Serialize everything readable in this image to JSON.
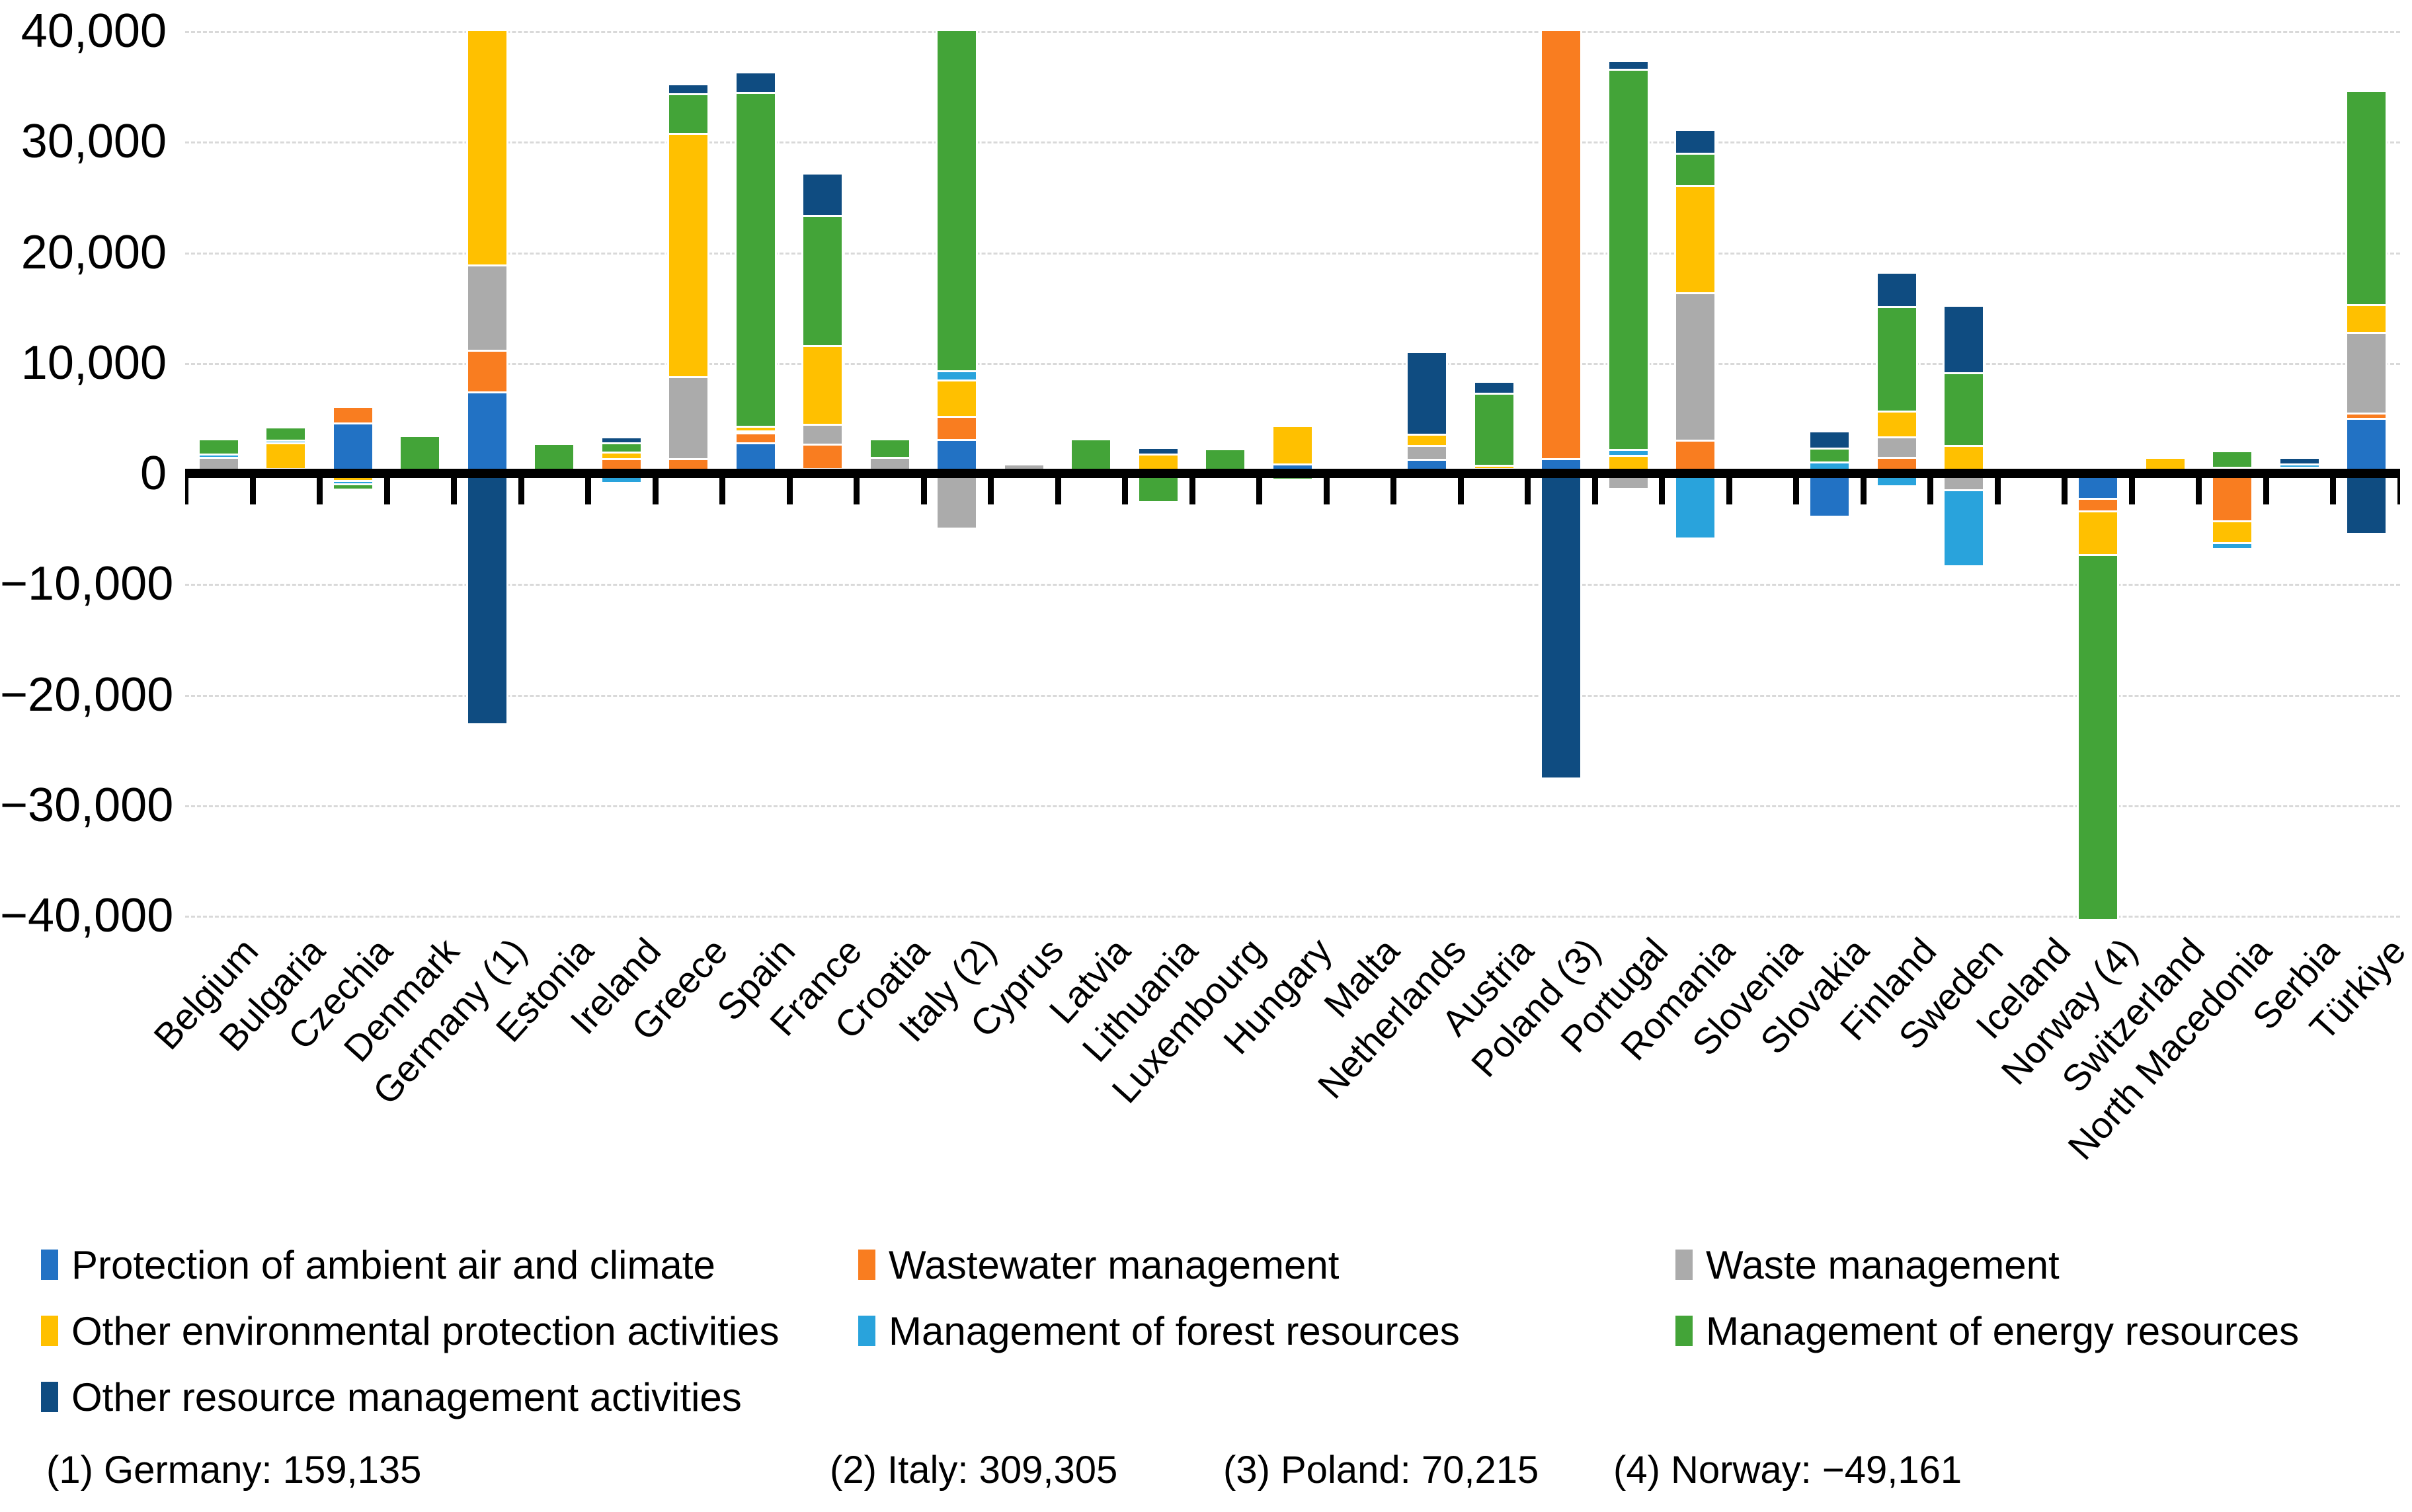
{
  "chart_data": {
    "type": "bar",
    "stacked": true,
    "title": "",
    "xlabel": "",
    "ylabel": "",
    "ylim": [
      -40000,
      40000
    ],
    "y_ticks": [
      "40,000",
      "30,000",
      "20,000",
      "10,000",
      "0",
      "−10,000",
      "−20,000",
      "−30,000",
      "−40,000"
    ],
    "grid": "horizontal-dashed",
    "legend_position": "bottom",
    "categories": [
      "Belgium",
      "Bulgaria",
      "Czechia",
      "Denmark",
      "Germany (1)",
      "Estonia",
      "Ireland",
      "Greece",
      "Spain",
      "France",
      "Croatia",
      "Italy (2)",
      "Cyprus",
      "Latvia",
      "Lithuania",
      "Luxembourg",
      "Hungary",
      "Malta",
      "Netherlands",
      "Austria",
      "Poland (3)",
      "Portugal",
      "Romania",
      "Slovenia",
      "Slovakia",
      "Finland",
      "Sweden",
      "Iceland",
      "Norway (4)",
      "Switzerland",
      "North Macedonia",
      "Serbia",
      "Türkiye"
    ],
    "series": [
      {
        "name": "Protection of ambient air and climate",
        "color": "#2272C4",
        "values": [
          0,
          0,
          4600,
          0,
          7400,
          0,
          0,
          0,
          2800,
          500,
          0,
          3100,
          0,
          0,
          -250,
          0,
          900,
          0,
          1300,
          0,
          1400,
          0,
          0,
          0,
          -3800,
          0,
          -400,
          0,
          -2400,
          0,
          -300,
          600,
          5000
        ]
      },
      {
        "name": "Wastewater management",
        "color": "#F97D20",
        "values": [
          0,
          0,
          1300,
          0,
          3800,
          0,
          1350,
          1400,
          900,
          2200,
          0,
          2100,
          0,
          0,
          0,
          0,
          0,
          0,
          0,
          0,
          96315,
          0,
          3050,
          0,
          300,
          1500,
          0,
          0,
          -1100,
          0,
          -4100,
          0,
          500
        ]
      },
      {
        "name": "Waste management",
        "color": "#ABABAB",
        "values": [
          1500,
          500,
          -400,
          400,
          7700,
          250,
          -400,
          7400,
          200,
          1800,
          1500,
          -4900,
          700,
          300,
          400,
          0,
          0,
          0,
          1300,
          500,
          0,
          -1300,
          13350,
          400,
          0,
          1850,
          -1200,
          0,
          0,
          0,
          600,
          -400,
          7300
        ]
      },
      {
        "name": "Other environmental protection activities",
        "color": "#FFC000",
        "values": [
          0,
          2300,
          -350,
          0,
          162835,
          0,
          650,
          22000,
          400,
          7100,
          0,
          3300,
          0,
          0,
          1400,
          0,
          3300,
          0,
          1000,
          300,
          0,
          1700,
          9650,
          0,
          0,
          2300,
          2550,
          0,
          -4000,
          1300,
          -2000,
          0,
          2500
        ]
      },
      {
        "name": "Management of forest resources",
        "color": "#29A3DC",
        "values": [
          300,
          250,
          -300,
          0,
          0,
          -200,
          -350,
          0,
          -300,
          -400,
          0,
          800,
          0,
          -300,
          -150,
          0,
          0,
          0,
          0,
          -400,
          0,
          500,
          -5800,
          0,
          800,
          -1100,
          -6700,
          0,
          0,
          0,
          -350,
          300,
          0
        ]
      },
      {
        "name": "Management of energy resources",
        "color": "#43A438",
        "values": [
          1200,
          1000,
          -350,
          2900,
          0,
          2350,
          800,
          3600,
          30200,
          11800,
          1500,
          304905,
          0,
          2700,
          -2100,
          2100,
          -500,
          0,
          0,
          6500,
          0,
          34400,
          2950,
          0,
          1250,
          9500,
          6600,
          -400,
          -41661,
          0,
          1300,
          0,
          19200
        ]
      },
      {
        "name": "Other resource management activities",
        "color": "#0F4C81",
        "values": [
          0,
          0,
          0,
          0,
          -22600,
          0,
          350,
          700,
          1700,
          3600,
          0,
          0,
          0,
          0,
          400,
          0,
          0,
          0,
          7300,
          900,
          -27500,
          600,
          2000,
          0,
          1350,
          2900,
          5900,
          0,
          0,
          0,
          0,
          400,
          -5400
        ]
      }
    ]
  },
  "legend": {
    "items": [
      {
        "label": "Protection of ambient air and climate",
        "color": "#2272C4"
      },
      {
        "label": "Wastewater management",
        "color": "#F97D20"
      },
      {
        "label": "Waste management",
        "color": "#ABABAB"
      },
      {
        "label": "Other environmental protection activities",
        "color": "#FFC000"
      },
      {
        "label": "Management of forest resources",
        "color": "#29A3DC"
      },
      {
        "label": "Management of energy resources",
        "color": "#43A438"
      },
      {
        "label": "Other resource management activities",
        "color": "#0F4C81"
      }
    ]
  },
  "footnotes": [
    "(1) Germany: 159,135",
    "(2) Italy: 309,305",
    "(3) Poland: 70,215",
    "(4) Norway: −49,161"
  ]
}
